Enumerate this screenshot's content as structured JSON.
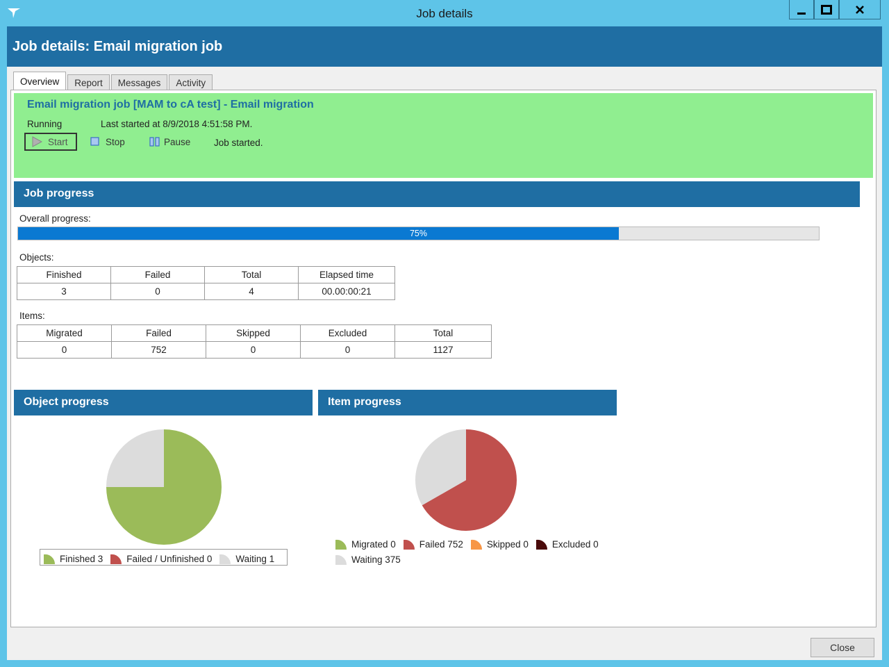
{
  "window": {
    "title": "Job details",
    "logo_icon": "app-logo-icon",
    "minimize_icon": "minimize-icon",
    "maximize_icon": "maximize-icon",
    "close_icon": "close-icon"
  },
  "header": {
    "title": "Job details: Email migration job"
  },
  "tabs": [
    {
      "label": "Overview",
      "active": true
    },
    {
      "label": "Report",
      "active": false
    },
    {
      "label": "Messages",
      "active": false
    },
    {
      "label": "Activity",
      "active": false
    }
  ],
  "status": {
    "job_name": "Email migration job [MAM to cA test] - Email migration",
    "state": "Running",
    "last_started": "Last started at 8/9/2018 4:51:58 PM.",
    "start_label": "Start",
    "stop_label": "Stop",
    "pause_label": "Pause",
    "message": "Job started."
  },
  "job_progress": {
    "title": "Job progress",
    "overall_label": "Overall progress:",
    "overall_percent": 75,
    "overall_text": "75%",
    "objects_label": "Objects:",
    "objects_headers": [
      "Finished",
      "Failed",
      "Total",
      "Elapsed time"
    ],
    "objects_values": [
      "3",
      "0",
      "4",
      "00.00:00:21"
    ],
    "items_label": "Items:",
    "items_headers": [
      "Migrated",
      "Failed",
      "Skipped",
      "Excluded",
      "Total"
    ],
    "items_values": [
      "0",
      "752",
      "0",
      "0",
      "1127"
    ]
  },
  "object_progress": {
    "title": "Object progress"
  },
  "item_progress": {
    "title": "Item progress"
  },
  "footer": {
    "close_label": "Close"
  },
  "colors": {
    "header": "#1f6ea3",
    "status_bg": "#90ee90",
    "progress_fill": "#0a79d2",
    "finished": "#9bbb59",
    "failed": "#c0504d",
    "skipped": "#f79646",
    "excluded": "#4a0a0a",
    "waiting": "#dcdcdc"
  },
  "chart_data": [
    {
      "type": "pie",
      "title": "Object progress",
      "categories": [
        "Finished",
        "Failed / Unfinished",
        "Waiting"
      ],
      "values": [
        3,
        0,
        1
      ],
      "colors": [
        "#9bbb59",
        "#c0504d",
        "#dcdcdc"
      ],
      "legend": [
        "Finished 3",
        "Failed / Unfinished 0",
        "Waiting 1"
      ]
    },
    {
      "type": "pie",
      "title": "Item progress",
      "categories": [
        "Migrated",
        "Failed",
        "Skipped",
        "Excluded",
        "Waiting"
      ],
      "values": [
        0,
        752,
        0,
        0,
        375
      ],
      "colors": [
        "#9bbb59",
        "#c0504d",
        "#f79646",
        "#4a0a0a",
        "#dcdcdc"
      ],
      "legend": [
        "Migrated 0",
        "Failed 752",
        "Skipped 0",
        "Excluded 0",
        "Waiting 375"
      ]
    }
  ]
}
